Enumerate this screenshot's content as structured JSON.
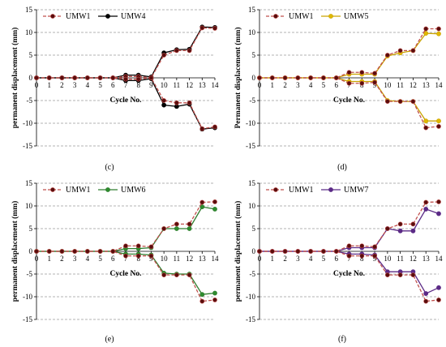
{
  "chart_data": [
    {
      "type": "line",
      "panel_label": "(c)",
      "xlabel": "Cycle No.",
      "ylabel": "permanent displacement (mm)",
      "ylim": [
        -15,
        15
      ],
      "y_ticks": [
        -15,
        -10,
        -5,
        0,
        5,
        10,
        15
      ],
      "x_ticks": [
        0,
        1,
        2,
        3,
        4,
        5,
        6,
        7,
        8,
        9,
        10,
        11,
        12,
        13,
        14
      ],
      "grid": "horizontal dashed",
      "legend_position": "top-left",
      "series": [
        {
          "name": "UMW1",
          "color": "#c0504d",
          "marker_color": "#5a0d0d",
          "dash": true,
          "upper": [
            0,
            0,
            0,
            0,
            0,
            0,
            0,
            0.3,
            0.3,
            0,
            5.0,
            6.0,
            6.0,
            11.0,
            10.9
          ],
          "lower": [
            0,
            0,
            0,
            0,
            0,
            0,
            0,
            -0.3,
            -0.3,
            0,
            -5.0,
            -5.5,
            -5.5,
            -11.2,
            -10.8
          ]
        },
        {
          "name": "UMW4",
          "color": "#000000",
          "marker_color": "#000000",
          "dash": false,
          "upper": [
            0,
            0,
            0,
            0,
            0,
            0,
            0,
            0.6,
            0.6,
            0.2,
            5.5,
            6.2,
            6.3,
            11.2,
            11.1
          ],
          "lower": [
            0,
            0,
            0,
            0,
            0,
            0,
            0,
            -0.6,
            -0.6,
            -0.2,
            -6.0,
            -6.3,
            -5.8,
            -11.3,
            -11.0
          ]
        }
      ]
    },
    {
      "type": "line",
      "panel_label": "(d)",
      "xlabel": "Cycle No.",
      "ylabel": "Permanent displacement (mm)",
      "ylim": [
        -15,
        15
      ],
      "y_ticks": [
        -15,
        -10,
        -5,
        0,
        5,
        10,
        15
      ],
      "x_ticks": [
        0,
        1,
        2,
        3,
        4,
        5,
        6,
        7,
        8,
        9,
        10,
        11,
        12,
        13,
        14
      ],
      "grid": "horizontal dashed",
      "legend_position": "top-left",
      "series": [
        {
          "name": "UMW1",
          "color": "#c0504d",
          "marker_color": "#5a0d0d",
          "dash": true,
          "upper": [
            0,
            0,
            0,
            0,
            0,
            0,
            0,
            1.2,
            1.2,
            1.0,
            5.0,
            6.0,
            6.0,
            10.8,
            10.8
          ],
          "lower": [
            0,
            0,
            0,
            0,
            0,
            0,
            0,
            -1.2,
            -1.2,
            -1.0,
            -5.2,
            -5.2,
            -5.2,
            -11.0,
            -10.7
          ]
        },
        {
          "name": "UMW5",
          "color": "#c9a300",
          "marker_color": "#e0b800",
          "dash": false,
          "upper": [
            0,
            0,
            0,
            0,
            0,
            0,
            0,
            0.8,
            0.8,
            0.8,
            4.8,
            5.5,
            6.0,
            9.8,
            9.7
          ],
          "lower": [
            0,
            0,
            0,
            0,
            0,
            0,
            0,
            -0.8,
            -0.8,
            -0.8,
            -5.0,
            -5.2,
            -5.2,
            -9.5,
            -9.5
          ]
        }
      ]
    },
    {
      "type": "line",
      "panel_label": "(e)",
      "xlabel": "Cycle No.",
      "ylabel": "permanent displacement (mm)",
      "ylim": [
        -15,
        15
      ],
      "y_ticks": [
        -15,
        -10,
        -5,
        0,
        5,
        10,
        15
      ],
      "x_ticks": [
        0,
        1,
        2,
        3,
        4,
        5,
        6,
        7,
        8,
        9,
        10,
        11,
        12,
        13,
        14
      ],
      "grid": "horizontal dashed",
      "legend_position": "top-left",
      "series": [
        {
          "name": "UMW1",
          "color": "#c0504d",
          "marker_color": "#5a0d0d",
          "dash": true,
          "upper": [
            0,
            0,
            0,
            0,
            0,
            0,
            0,
            1.2,
            1.2,
            1.0,
            5.0,
            6.0,
            6.0,
            10.8,
            10.9
          ],
          "lower": [
            0,
            0,
            0,
            0,
            0,
            0,
            0,
            -1.0,
            -1.0,
            -1.0,
            -5.2,
            -5.2,
            -5.2,
            -11.0,
            -10.7
          ]
        },
        {
          "name": "UMW6",
          "color": "#2e7d2e",
          "marker_color": "#2e8b2e",
          "dash": false,
          "upper": [
            0,
            0,
            0,
            0,
            0,
            0,
            0,
            0.6,
            0.6,
            0.8,
            5.0,
            5.0,
            5.0,
            9.8,
            9.3
          ],
          "lower": [
            0,
            0,
            0,
            0,
            0,
            0,
            0,
            -0.6,
            -0.6,
            -0.8,
            -4.8,
            -5.0,
            -5.0,
            -9.5,
            -9.2
          ]
        }
      ]
    },
    {
      "type": "line",
      "panel_label": "(f)",
      "xlabel": "Cycle No.",
      "ylabel": "permanent displacement (mm)",
      "ylim": [
        -15,
        15
      ],
      "y_ticks": [
        -15,
        -10,
        -5,
        0,
        5,
        10,
        15
      ],
      "x_ticks": [
        0,
        1,
        2,
        3,
        4,
        5,
        6,
        7,
        8,
        9,
        10,
        11,
        12,
        13,
        14
      ],
      "grid": "horizontal dashed",
      "legend_position": "top-left",
      "series": [
        {
          "name": "UMW1",
          "color": "#c0504d",
          "marker_color": "#5a0d0d",
          "dash": true,
          "upper": [
            0,
            0,
            0,
            0,
            0,
            0,
            0,
            1.2,
            1.2,
            1.0,
            5.0,
            6.0,
            6.0,
            10.8,
            10.9
          ],
          "lower": [
            0,
            0,
            0,
            0,
            0,
            0,
            0,
            -1.0,
            -1.0,
            -1.0,
            -5.2,
            -5.2,
            -5.2,
            -11.0,
            -10.7
          ]
        },
        {
          "name": "UMW7",
          "color": "#5b2a86",
          "marker_color": "#5b2a86",
          "dash": false,
          "upper": [
            0,
            0,
            0,
            0,
            0,
            0,
            0,
            0.8,
            0.8,
            0.8,
            5.0,
            4.5,
            4.5,
            9.3,
            8.3
          ],
          "lower": [
            0,
            0,
            0,
            0,
            0,
            0,
            0,
            -0.6,
            -0.6,
            -0.8,
            -4.5,
            -4.5,
            -4.5,
            -9.3,
            -8.0
          ]
        }
      ]
    }
  ]
}
